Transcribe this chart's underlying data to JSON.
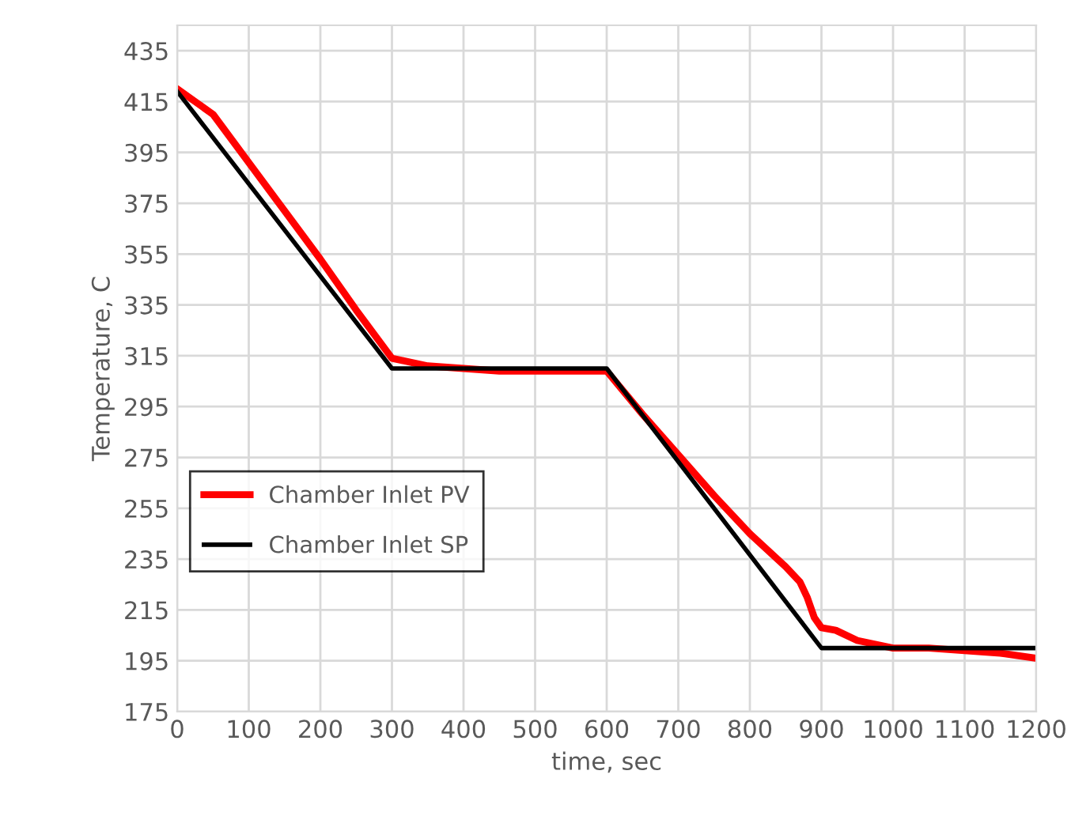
{
  "chart_data": {
    "type": "line",
    "xlabel": "time, sec",
    "ylabel": "Temperature, C",
    "xlim": [
      0,
      1200
    ],
    "xticks": [
      0,
      100,
      200,
      300,
      400,
      500,
      600,
      700,
      800,
      900,
      1000,
      1100,
      1200
    ],
    "ylim": [
      175,
      445
    ],
    "yticks": [
      175,
      195,
      215,
      235,
      255,
      275,
      295,
      315,
      335,
      355,
      375,
      395,
      415,
      435
    ],
    "grid": true,
    "legend": "left",
    "marker": "none",
    "line_style": "solid",
    "series": [
      {
        "name": "Chamber Inlet PV",
        "color": "#ff0000",
        "x": [
          0,
          50,
          100,
          150,
          200,
          250,
          300,
          350,
          400,
          450,
          500,
          550,
          600,
          650,
          700,
          750,
          800,
          850,
          870,
          880,
          890,
          900,
          920,
          950,
          1000,
          1050,
          1100,
          1150,
          1200
        ],
        "values": [
          420,
          410,
          391,
          372,
          353,
          333,
          314,
          311,
          310,
          309,
          309,
          309,
          309,
          292,
          276,
          260,
          245,
          232,
          226,
          220,
          212,
          208,
          207,
          203,
          200,
          200,
          199,
          198,
          196
        ]
      },
      {
        "name": "Chamber Inlet SP",
        "color": "#000000",
        "x": [
          0,
          300,
          600,
          900,
          1200
        ],
        "values": [
          419,
          310,
          310,
          200,
          200
        ]
      }
    ]
  }
}
